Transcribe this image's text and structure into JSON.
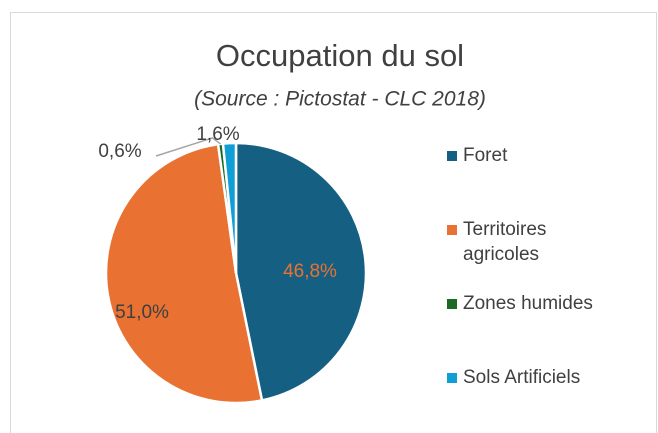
{
  "chart_data": {
    "type": "pie",
    "title": "Occupation du sol",
    "subtitle": "(Source : Pictostat - CLC 2018)",
    "categories": [
      "Foret",
      "Territoires agricoles",
      "Zones humides",
      "Sols Artificiels"
    ],
    "values": [
      46.8,
      51.0,
      0.6,
      1.6
    ],
    "value_labels": [
      "46,8%",
      "51,0%",
      "0,6%",
      "1,6%"
    ],
    "colors": [
      "#156082",
      "#e97132",
      "#196b24",
      "#0f9ed5"
    ],
    "legend": "right"
  }
}
